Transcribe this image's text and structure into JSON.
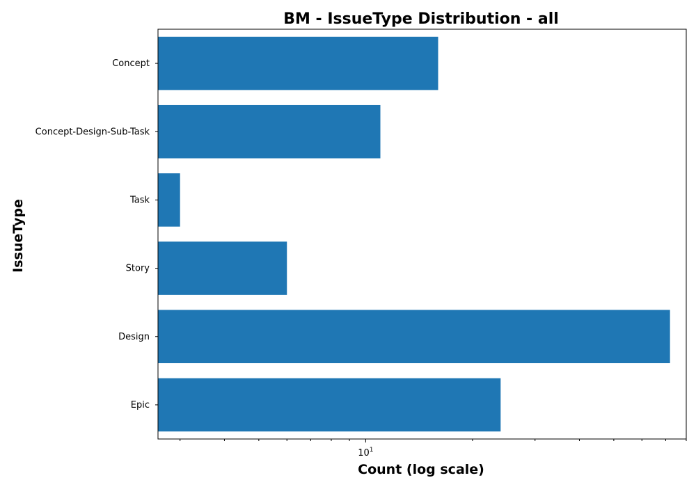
{
  "chart_data": {
    "type": "bar",
    "orientation": "horizontal",
    "title": "BM - IssueType Distribution - all",
    "xlabel": "Count (log scale)",
    "ylabel": "IssueType",
    "x_scale": "log",
    "xlim": [
      2.6,
      80
    ],
    "x_major_ticks": [
      {
        "value": 10,
        "base": "10",
        "exponent": "1"
      }
    ],
    "x_minor_ticks": [
      3,
      4,
      5,
      6,
      7,
      8,
      9,
      20,
      30,
      40,
      50,
      60,
      70,
      80
    ],
    "categories": [
      "Concept",
      "Concept-Design-Sub-Task",
      "Task",
      "Story",
      "Design",
      "Epic"
    ],
    "values": [
      16,
      11,
      3,
      6,
      72,
      24
    ],
    "bar_color": "#1f77b4",
    "grid": false,
    "legend": "none"
  }
}
